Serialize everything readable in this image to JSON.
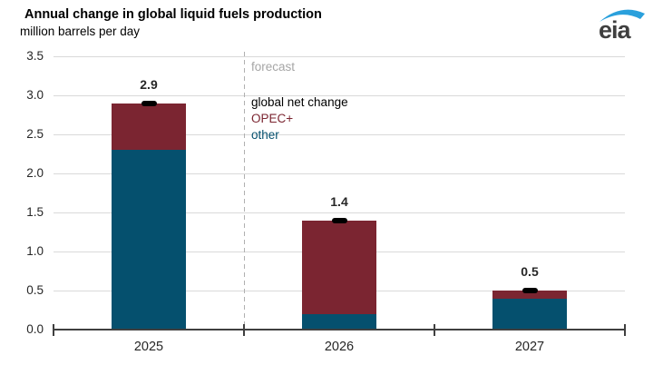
{
  "header": {
    "title": "Annual change in global liquid fuels production",
    "subtitle": "million barrels per day"
  },
  "logo": {
    "text": "eia",
    "swoosh_color": "#2aa0dc",
    "text_color": "#3f3f3f"
  },
  "chart_data": {
    "type": "bar",
    "stacked": true,
    "title": "Annual change in global liquid fuels production",
    "ylabel": "million barrels per day",
    "categories": [
      "2025",
      "2026",
      "2027"
    ],
    "series": [
      {
        "name": "other",
        "color": "#05506e",
        "values": [
          2.3,
          0.2,
          0.4
        ]
      },
      {
        "name": "OPEC+",
        "color": "#7b2531",
        "values": [
          0.6,
          1.2,
          0.1
        ]
      }
    ],
    "markers": {
      "name": "global net change",
      "color": "#000000",
      "values": [
        2.9,
        1.4,
        0.5
      ],
      "labels": [
        "2.9",
        "1.4",
        "0.5"
      ]
    },
    "ylim": [
      0,
      3.5
    ],
    "ytick_interval": 0.5,
    "ytick_labels": [
      "0.0",
      "0.5",
      "1.0",
      "1.5",
      "2.0",
      "2.5",
      "3.0",
      "3.5"
    ],
    "grid": true,
    "forecast_divider": {
      "label": "forecast",
      "between": [
        "2025",
        "2026"
      ],
      "line_color": "#b0b0b0",
      "label_color": "#a6a6a6"
    },
    "legend": {
      "position": "inside-top, right of forecast divider",
      "items": [
        {
          "label": "global net change",
          "color": "#000000"
        },
        {
          "label": "OPEC+",
          "color": "#7b2531"
        },
        {
          "label": "other",
          "color": "#05506e"
        }
      ]
    }
  }
}
